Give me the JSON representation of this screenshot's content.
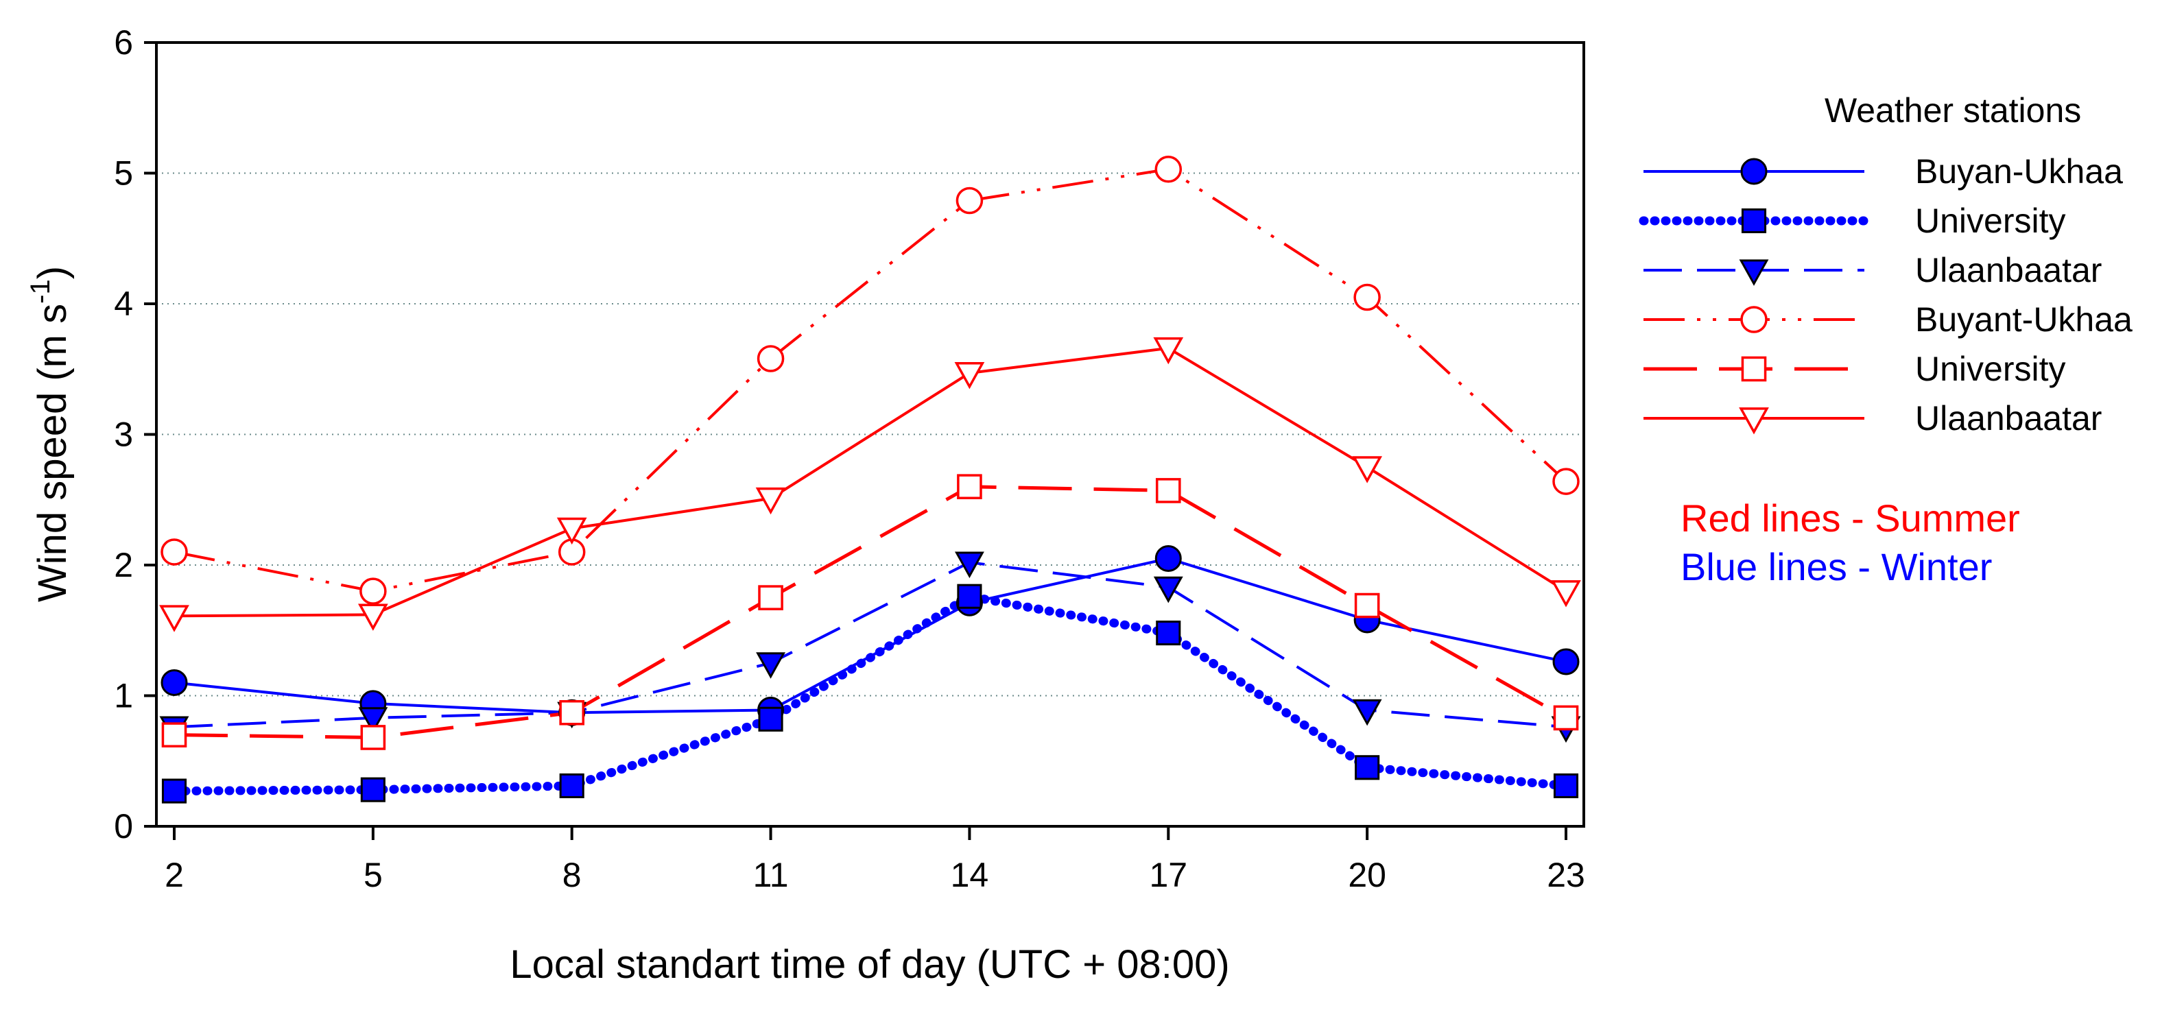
{
  "chart_data": {
    "type": "line",
    "title": "",
    "xlabel": "Local standart time of day (UTC + 08:00)",
    "ylabel_main": "Wind speed (m s",
    "ylabel_sup": "-1",
    "ylabel_close": ")",
    "x": [
      2,
      5,
      8,
      11,
      14,
      17,
      20,
      23
    ],
    "x_tick_labels": [
      "2",
      "5",
      "8",
      "11",
      "14",
      "17",
      "20",
      "23"
    ],
    "xlim": [
      2,
      23
    ],
    "ylim": [
      0,
      6
    ],
    "y_ticks": [
      0,
      1,
      2,
      3,
      4,
      5,
      6
    ],
    "y_tick_labels": [
      "0",
      "1",
      "2",
      "3",
      "4",
      "5",
      "6"
    ],
    "gridlines": "dotted horizontal",
    "legend_position": "right",
    "legend_title": "Weather stations",
    "series": [
      {
        "name": "Buyan-Ukhaa",
        "season": "winter",
        "color": "#0000ff",
        "line": "solid",
        "marker": "circle",
        "marker_fill": "filled",
        "values": [
          1.1,
          0.94,
          0.87,
          0.89,
          1.71,
          2.05,
          1.58,
          1.26
        ]
      },
      {
        "name": "University",
        "season": "winter",
        "color": "#0000ff",
        "line": "dotted",
        "marker": "square",
        "marker_fill": "filled",
        "values": [
          0.27,
          0.28,
          0.31,
          0.82,
          1.76,
          1.48,
          0.45,
          0.31
        ]
      },
      {
        "name": "Ulaanbaatar",
        "season": "winter",
        "color": "#0000ff",
        "line": "dashed",
        "marker": "triangle-down",
        "marker_fill": "filled",
        "values": [
          0.76,
          0.83,
          0.87,
          1.25,
          2.02,
          1.83,
          0.89,
          0.76
        ]
      },
      {
        "name": "Buyant-Ukhaa",
        "season": "summer",
        "color": "#ff0000",
        "line": "dash-dot-dot",
        "marker": "circle",
        "marker_fill": "open",
        "values": [
          2.1,
          1.8,
          2.1,
          3.58,
          4.79,
          5.03,
          4.05,
          2.64
        ]
      },
      {
        "name": "University",
        "season": "summer",
        "color": "#ff0000",
        "line": "long-dash",
        "marker": "square",
        "marker_fill": "open",
        "values": [
          0.7,
          0.68,
          0.87,
          1.75,
          2.6,
          2.57,
          1.69,
          0.83
        ]
      },
      {
        "name": "Ulaanbaatar",
        "season": "summer",
        "color": "#ff0000",
        "line": "solid",
        "marker": "triangle-down",
        "marker_fill": "open",
        "values": [
          1.61,
          1.62,
          2.28,
          2.51,
          3.47,
          3.66,
          2.75,
          1.8
        ]
      }
    ],
    "annotations": [
      {
        "text": "Red lines - Summer",
        "color": "#ff0000"
      },
      {
        "text": "Blue lines - Winter",
        "color": "#0000ff"
      }
    ]
  }
}
